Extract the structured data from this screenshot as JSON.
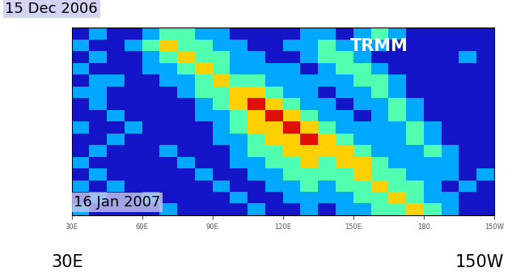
{
  "chart_data": {
    "type": "heatmap",
    "annotations": [
      "TRMM",
      "15 Dec 2006",
      "16 Jan 2007",
      "30E",
      "150W"
    ],
    "x_edges": [
      30,
      37.5,
      45,
      52.5,
      60,
      67.5,
      75,
      82.5,
      90,
      97.5,
      105,
      112.5,
      120,
      127.5,
      135,
      142.5,
      150,
      157.5,
      165,
      172.5,
      180,
      187.5,
      195,
      202.5,
      210
    ],
    "y_edges": [
      0,
      2,
      4,
      6,
      8,
      10,
      12,
      14,
      16,
      18,
      20,
      22,
      24,
      26,
      28,
      30,
      32
    ],
    "xlim": [
      30,
      210
    ],
    "xticks": [
      {
        "value": 30,
        "label": "30E"
      },
      {
        "value": 60,
        "label": "60E"
      },
      {
        "value": 90,
        "label": "90E"
      },
      {
        "value": 120,
        "label": "120E"
      },
      {
        "value": 150,
        "label": "150E"
      },
      {
        "value": 180,
        "label": "180"
      },
      {
        "value": 210,
        "label": "150W"
      }
    ],
    "ylim": [
      32,
      0
    ],
    "yticks": [],
    "tick_labels": "x",
    "grid": false,
    "cells": [
      [
        0,
        1,
        0,
        0,
        1,
        2,
        2,
        1,
        1,
        0,
        0,
        0,
        0,
        1,
        1,
        0,
        1,
        2,
        1,
        0,
        0,
        0,
        0,
        0
      ],
      [
        1,
        0,
        0,
        1,
        2,
        3,
        2,
        2,
        1,
        1,
        0,
        0,
        1,
        1,
        2,
        1,
        1,
        1,
        0,
        0,
        0,
        0,
        0,
        0
      ],
      [
        0,
        1,
        0,
        0,
        1,
        2,
        3,
        2,
        2,
        1,
        1,
        0,
        0,
        1,
        2,
        2,
        1,
        0,
        0,
        0,
        0,
        0,
        1,
        0
      ],
      [
        1,
        0,
        0,
        0,
        1,
        1,
        2,
        3,
        2,
        1,
        1,
        1,
        1,
        0,
        1,
        2,
        2,
        1,
        0,
        0,
        0,
        0,
        0,
        0
      ],
      [
        0,
        1,
        1,
        0,
        0,
        1,
        1,
        2,
        3,
        2,
        2,
        1,
        1,
        1,
        1,
        1,
        2,
        2,
        1,
        0,
        0,
        0,
        0,
        0
      ],
      [
        1,
        1,
        0,
        0,
        0,
        0,
        1,
        2,
        2,
        3,
        3,
        2,
        1,
        1,
        0,
        1,
        1,
        2,
        1,
        0,
        0,
        0,
        0,
        0
      ],
      [
        0,
        1,
        0,
        0,
        0,
        0,
        0,
        1,
        2,
        3,
        4,
        3,
        2,
        1,
        1,
        0,
        1,
        1,
        2,
        1,
        0,
        0,
        0,
        0
      ],
      [
        0,
        0,
        1,
        0,
        0,
        0,
        0,
        1,
        1,
        2,
        3,
        4,
        3,
        2,
        1,
        1,
        0,
        1,
        2,
        1,
        0,
        0,
        0,
        0
      ],
      [
        1,
        0,
        0,
        1,
        0,
        0,
        0,
        0,
        1,
        2,
        3,
        3,
        4,
        3,
        2,
        1,
        1,
        1,
        1,
        2,
        1,
        0,
        0,
        0
      ],
      [
        0,
        0,
        1,
        0,
        0,
        0,
        0,
        0,
        1,
        1,
        2,
        3,
        3,
        4,
        3,
        2,
        1,
        1,
        1,
        2,
        1,
        0,
        0,
        0
      ],
      [
        0,
        1,
        0,
        0,
        0,
        1,
        0,
        0,
        0,
        1,
        2,
        2,
        3,
        3,
        3,
        3,
        2,
        1,
        1,
        1,
        2,
        1,
        0,
        0
      ],
      [
        1,
        0,
        0,
        0,
        0,
        0,
        1,
        0,
        0,
        1,
        1,
        2,
        2,
        3,
        2,
        3,
        3,
        2,
        1,
        1,
        1,
        1,
        0,
        0
      ],
      [
        0,
        1,
        0,
        0,
        0,
        0,
        0,
        1,
        0,
        0,
        1,
        1,
        2,
        2,
        2,
        2,
        3,
        2,
        2,
        1,
        1,
        1,
        0,
        1
      ],
      [
        1,
        0,
        1,
        0,
        0,
        0,
        0,
        0,
        1,
        0,
        0,
        1,
        1,
        2,
        1,
        2,
        2,
        3,
        2,
        2,
        1,
        0,
        1,
        0
      ],
      [
        0,
        1,
        0,
        0,
        1,
        0,
        0,
        0,
        0,
        1,
        0,
        0,
        1,
        1,
        1,
        1,
        2,
        2,
        3,
        2,
        1,
        1,
        0,
        0
      ],
      [
        1,
        0,
        0,
        0,
        0,
        1,
        0,
        0,
        0,
        0,
        1,
        0,
        0,
        1,
        0,
        1,
        1,
        2,
        2,
        3,
        2,
        1,
        0,
        0
      ]
    ]
  }
}
